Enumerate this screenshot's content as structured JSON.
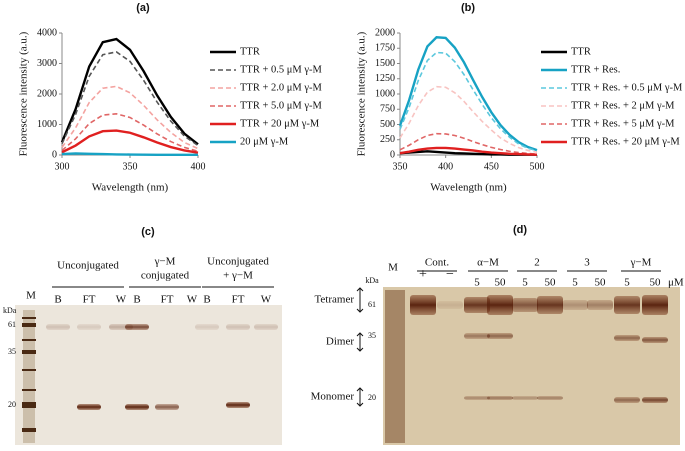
{
  "chart_data": [
    {
      "type": "line",
      "title": "(a)",
      "x_label": "Wavelength (nm)",
      "y_label": "Fluorescence intensity (a.u.)",
      "x": [
        300,
        310,
        320,
        330,
        340,
        350,
        360,
        370,
        380,
        390,
        400
      ],
      "xlim": [
        300,
        400
      ],
      "xticks": [
        300,
        350,
        400
      ],
      "ylim": [
        0,
        4000
      ],
      "yticks": [
        0,
        1000,
        2000,
        3000,
        4000
      ],
      "series": [
        {
          "name": "TTR",
          "color": "#000000",
          "dash": false,
          "values": [
            420,
            1500,
            2900,
            3700,
            3800,
            3450,
            2750,
            1950,
            1250,
            700,
            350
          ]
        },
        {
          "name": "TTR + 0.5 μM γ-M",
          "color": "#555555",
          "dash": true,
          "values": [
            370,
            1330,
            2580,
            3290,
            3380,
            3070,
            2450,
            1730,
            1110,
            620,
            310
          ]
        },
        {
          "name": "TTR + 2.0 μM γ-M",
          "color": "#f4a3a0",
          "dash": true,
          "values": [
            250,
            890,
            1720,
            2190,
            2250,
            2040,
            1630,
            1150,
            740,
            410,
            210
          ]
        },
        {
          "name": "TTR + 5.0 μM γ-M",
          "color": "#e06666",
          "dash": true,
          "values": [
            150,
            530,
            1030,
            1310,
            1350,
            1230,
            980,
            690,
            440,
            250,
            120
          ]
        },
        {
          "name": "TTR + 20 μM γ-M",
          "color": "#e02020",
          "dash": false,
          "values": [
            90,
            310,
            610,
            780,
            800,
            730,
            580,
            410,
            260,
            150,
            75
          ]
        },
        {
          "name": "20 μM γ-M",
          "color": "#17a2c4",
          "dash": false,
          "values": [
            30,
            50,
            40,
            30,
            20,
            15,
            10,
            5,
            5,
            5,
            5
          ]
        }
      ]
    },
    {
      "type": "line",
      "title": "(b)",
      "x_label": "Wavelength (nm)",
      "y_label": "Fluorescence intensity (a.u.)",
      "x": [
        350,
        360,
        370,
        380,
        390,
        400,
        410,
        420,
        430,
        440,
        450,
        460,
        470,
        480,
        490,
        500
      ],
      "xlim": [
        350,
        500
      ],
      "xticks": [
        350,
        400,
        450,
        500
      ],
      "ylim": [
        0,
        2000
      ],
      "yticks": [
        0,
        250,
        500,
        750,
        1000,
        1250,
        1500,
        1750,
        2000
      ],
      "series": [
        {
          "name": "TTR",
          "color": "#000000",
          "dash": false,
          "values": [
            30,
            40,
            50,
            60,
            50,
            40,
            30,
            25,
            20,
            15,
            10,
            10,
            5,
            5,
            5,
            5
          ]
        },
        {
          "name": "TTR + Res.",
          "color": "#17a2c4",
          "dash": false,
          "values": [
            480,
            900,
            1400,
            1780,
            1930,
            1920,
            1760,
            1520,
            1230,
            950,
            700,
            490,
            330,
            210,
            130,
            80
          ]
        },
        {
          "name": "TTR + Res. + 0.5 μM γ-M",
          "color": "#5cc8dd",
          "dash": true,
          "values": [
            420,
            780,
            1220,
            1550,
            1680,
            1670,
            1530,
            1320,
            1070,
            830,
            610,
            430,
            290,
            180,
            110,
            70
          ]
        },
        {
          "name": "TTR + Res. + 2 μM γ-M",
          "color": "#f8c4c2",
          "dash": true,
          "values": [
            280,
            520,
            810,
            1030,
            1120,
            1110,
            1020,
            880,
            710,
            550,
            410,
            280,
            190,
            120,
            75,
            45
          ]
        },
        {
          "name": "TTR + Res. + 5 μM γ-M",
          "color": "#e06666",
          "dash": true,
          "values": [
            85,
            160,
            250,
            320,
            350,
            345,
            320,
            275,
            220,
            170,
            125,
            90,
            60,
            40,
            25,
            15
          ]
        },
        {
          "name": "TTR + Res. + 20 μM γ-M",
          "color": "#e02020",
          "dash": false,
          "values": [
            30,
            55,
            85,
            105,
            115,
            115,
            105,
            90,
            75,
            55,
            40,
            30,
            20,
            15,
            10,
            5
          ]
        }
      ]
    }
  ],
  "gel_c": {
    "title": "(c)",
    "marker_lane": "M",
    "kda": "kDa",
    "markers": [
      "61",
      "35",
      "20"
    ],
    "groups": [
      [
        "Unconjugated"
      ],
      [
        "γ−M",
        "conjugated"
      ],
      [
        "Unconjugated",
        "+ γ−M"
      ]
    ],
    "lanes": [
      "B",
      "FT",
      "W",
      "B",
      "FT",
      "W",
      "B",
      "FT",
      "W"
    ]
  },
  "gel_d": {
    "title": "(d)",
    "marker_lane": "M",
    "kda": "kDa",
    "markers": [
      "61",
      "35",
      "20"
    ],
    "groups": [
      "Cont.",
      "α−M",
      "2",
      "3",
      "γ−M"
    ],
    "lanes": [
      "+",
      "−",
      "5",
      "50",
      "5",
      "50",
      "5",
      "50",
      "5",
      "50"
    ],
    "unit": "μM",
    "species": [
      "Tetramer",
      "Dimer",
      "Monomer"
    ]
  }
}
